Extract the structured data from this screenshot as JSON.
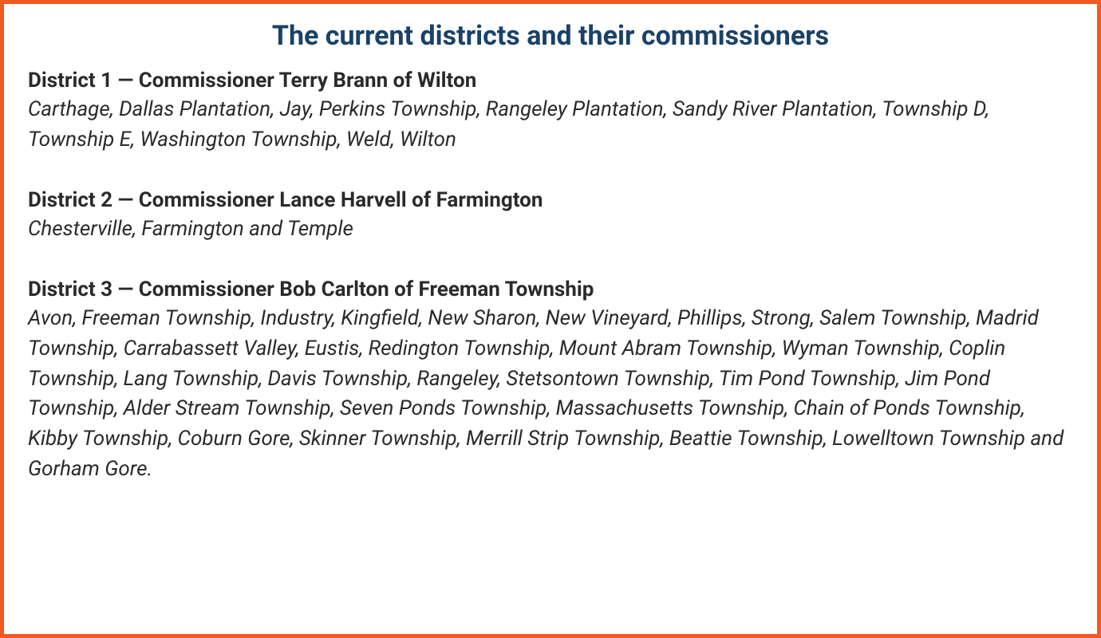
{
  "title": "The current districts and their commissioners",
  "title_color": "#1a4268",
  "border_color": "#f15a24",
  "text_color": "#2a2a2a",
  "background_color": "#ffffff",
  "title_fontsize": 34,
  "header_fontsize": 26,
  "body_fontsize": 26,
  "districts": [
    {
      "header": "District 1 — Commissioner Terry Brann of Wilton",
      "body": "Carthage, Dallas Plantation, Jay, Perkins Township, Rangeley Plantation, Sandy River Plantation, Township D, Township E, Washington Township, Weld, Wilton"
    },
    {
      "header": "District 2 — Commissioner Lance Harvell of Farmington",
      "body": "Chesterville, Farmington and Temple"
    },
    {
      "header": "District 3 — Commissioner Bob Carlton of Freeman Township",
      "body": " Avon, Freeman Township, Industry, Kingfield, New Sharon, New Vineyard, Phillips, Strong, Salem Township, Madrid Township, Carrabassett Valley, Eustis, Redington Township, Mount Abram Township, Wyman Township, Coplin Township, Lang Township, Davis Township, Rangeley, Stetsontown Township, Tim Pond Township, Jim Pond Township, Alder Stream Township, Seven Ponds Township, Massachusetts Township, Chain of Ponds Township, Kibby Township, Coburn Gore, Skinner Township, Merrill Strip Township, Beattie Township, Lowelltown Township and Gorham Gore."
    }
  ]
}
